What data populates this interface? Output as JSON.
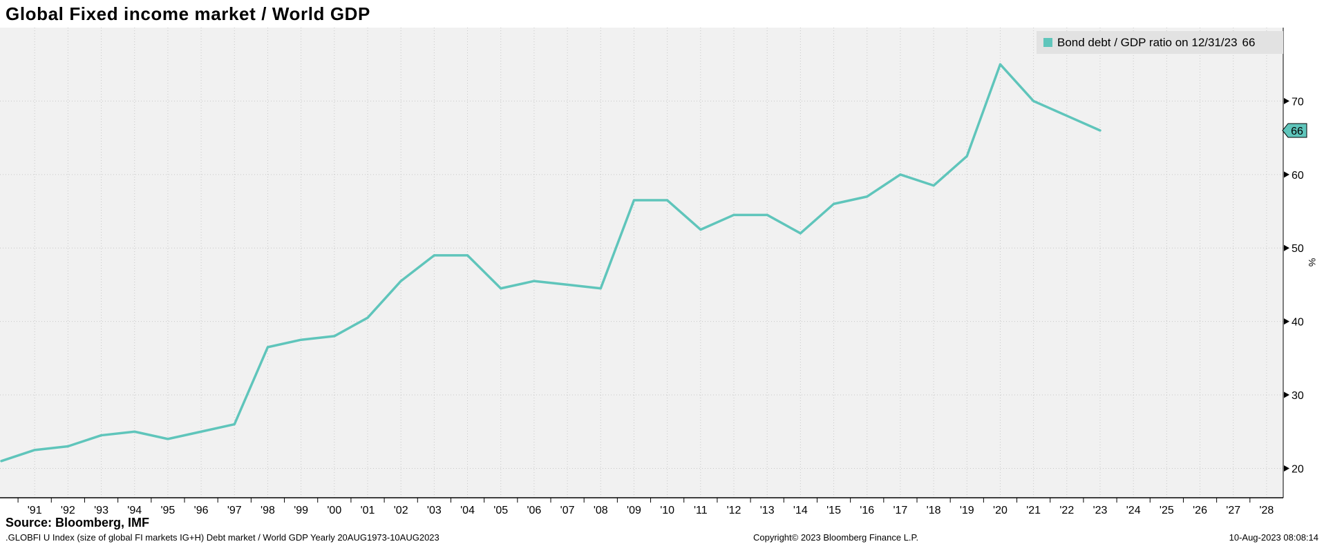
{
  "title": "Global Fixed income market / World GDP",
  "legend": {
    "label": "Bond debt / GDP ratio on 12/31/23",
    "value": "66"
  },
  "axis": {
    "y_label": "%",
    "last_value": "66"
  },
  "source": "Source: Bloomberg, IMF",
  "footer": {
    "left": ".GLOBFI U Index (size of global FI markets IG+H) Debt market / World GDP  Yearly 20AUG1973-10AUG2023",
    "center": "Copyright© 2023 Bloomberg Finance L.P.",
    "right": "10-Aug-2023 08:08:14"
  },
  "colors": {
    "line": "#5fc5bb",
    "plot_bg": "#f1f1f1",
    "grid": "#c6c6c6",
    "legend_bg": "#e2e2e2",
    "axis": "#000000"
  },
  "chart_data": {
    "type": "line",
    "title": "Global Fixed income market / World GDP",
    "ylabel": "%",
    "xlim": [
      1990,
      2028.5
    ],
    "ylim": [
      16,
      80
    ],
    "y_ticks": [
      20,
      30,
      40,
      50,
      60,
      70
    ],
    "x_tick_labels": [
      "'91",
      "'92",
      "'93",
      "'94",
      "'95",
      "'96",
      "'97",
      "'98",
      "'99",
      "'00",
      "'01",
      "'02",
      "'03",
      "'04",
      "'05",
      "'06",
      "'07",
      "'08",
      "'09",
      "'10",
      "'11",
      "'12",
      "'13",
      "'14",
      "'15",
      "'16",
      "'17",
      "'18",
      "'19",
      "'20",
      "'21",
      "'22",
      "'23",
      "'24",
      "'25",
      "'26",
      "'27",
      "'28"
    ],
    "grid": true,
    "legend_position": "top-right",
    "series": [
      {
        "name": "Bond debt / GDP ratio on 12/31/23",
        "color": "#5fc5bb",
        "x": [
          1990,
          1991,
          1992,
          1993,
          1994,
          1995,
          1996,
          1997,
          1998,
          1999,
          2000,
          2001,
          2002,
          2003,
          2004,
          2005,
          2006,
          2007,
          2008,
          2009,
          2010,
          2011,
          2012,
          2013,
          2014,
          2015,
          2016,
          2017,
          2018,
          2019,
          2020,
          2021,
          2022,
          2023
        ],
        "values": [
          21,
          22.5,
          23,
          24.5,
          25,
          24,
          25,
          26,
          36.5,
          37.5,
          38,
          40.5,
          45.5,
          49,
          49,
          44.5,
          45.5,
          45,
          44.5,
          56.5,
          56.5,
          52.5,
          54.5,
          54.5,
          52,
          56,
          57,
          60,
          58.5,
          62.5,
          75,
          70,
          68,
          66
        ]
      }
    ]
  }
}
